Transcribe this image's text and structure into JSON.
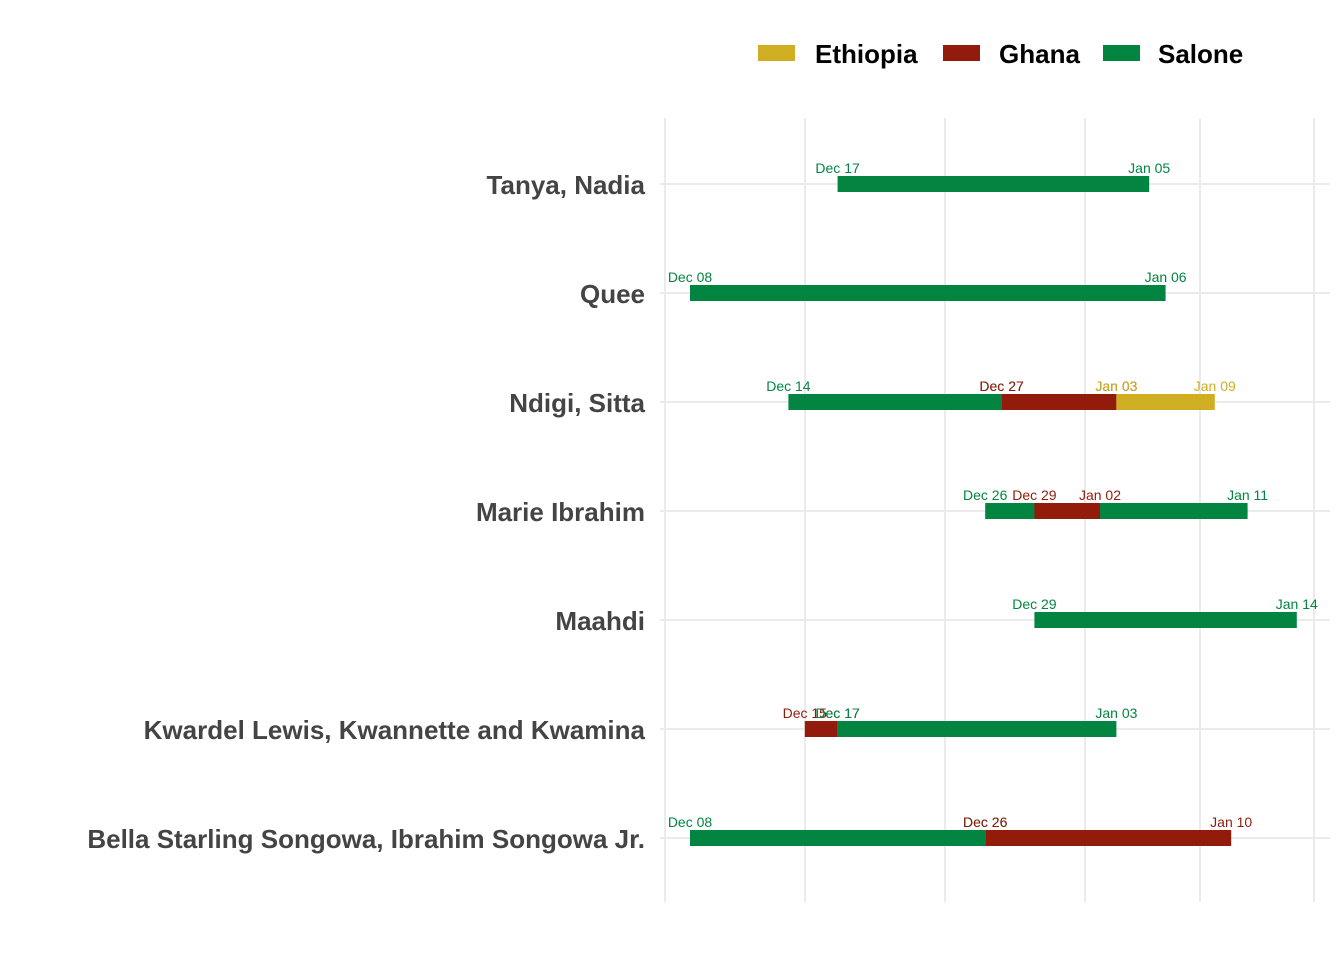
{
  "chart_data": {
    "type": "gantt",
    "x_axis": {
      "type": "date",
      "min": "Dec 07",
      "max": "Jan 15",
      "grid": true,
      "tick_labels_visible": false
    },
    "legend": {
      "placement": "top-right",
      "entries": [
        {
          "name": "Ethiopia",
          "color": "#CFAE22"
        },
        {
          "name": "Ghana",
          "color": "#921B0C"
        },
        {
          "name": "Salone",
          "color": "#038541"
        }
      ]
    },
    "rows": [
      {
        "label": "Tanya, Nadia",
        "segments": [
          {
            "country": "Salone",
            "start": "Dec 17",
            "end": "Jan 05"
          }
        ]
      },
      {
        "label": "Quee",
        "segments": [
          {
            "country": "Salone",
            "start": "Dec 08",
            "end": "Jan 06"
          }
        ]
      },
      {
        "label": "Ndigi, Sitta",
        "segments": [
          {
            "country": "Salone",
            "start": "Dec 14",
            "end": "Dec 27"
          },
          {
            "country": "Ghana",
            "start": "Dec 27",
            "end": "Jan 03"
          },
          {
            "country": "Ethiopia",
            "start": "Jan 03",
            "end": "Jan 09"
          }
        ]
      },
      {
        "label": "Marie Ibrahim",
        "segments": [
          {
            "country": "Salone",
            "start": "Dec 26",
            "end": "Jan 11"
          },
          {
            "country": "Ghana",
            "start": "Dec 29",
            "end": "Jan 02"
          }
        ]
      },
      {
        "label": "Maahdi",
        "segments": [
          {
            "country": "Salone",
            "start": "Dec 29",
            "end": "Jan 14"
          }
        ]
      },
      {
        "label": "Kwardel Lewis, Kwannette and Kwamina",
        "segments": [
          {
            "country": "Ghana",
            "start": "Dec 15",
            "end": "Dec 17"
          },
          {
            "country": "Salone",
            "start": "Dec 17",
            "end": "Jan 03"
          }
        ]
      },
      {
        "label": "Bella Starling Songowa, Ibrahim Songowa Jr.",
        "segments": [
          {
            "country": "Salone",
            "start": "Dec 08",
            "end": "Dec 26"
          },
          {
            "country": "Ghana",
            "start": "Dec 26",
            "end": "Jan 10"
          }
        ]
      }
    ]
  }
}
